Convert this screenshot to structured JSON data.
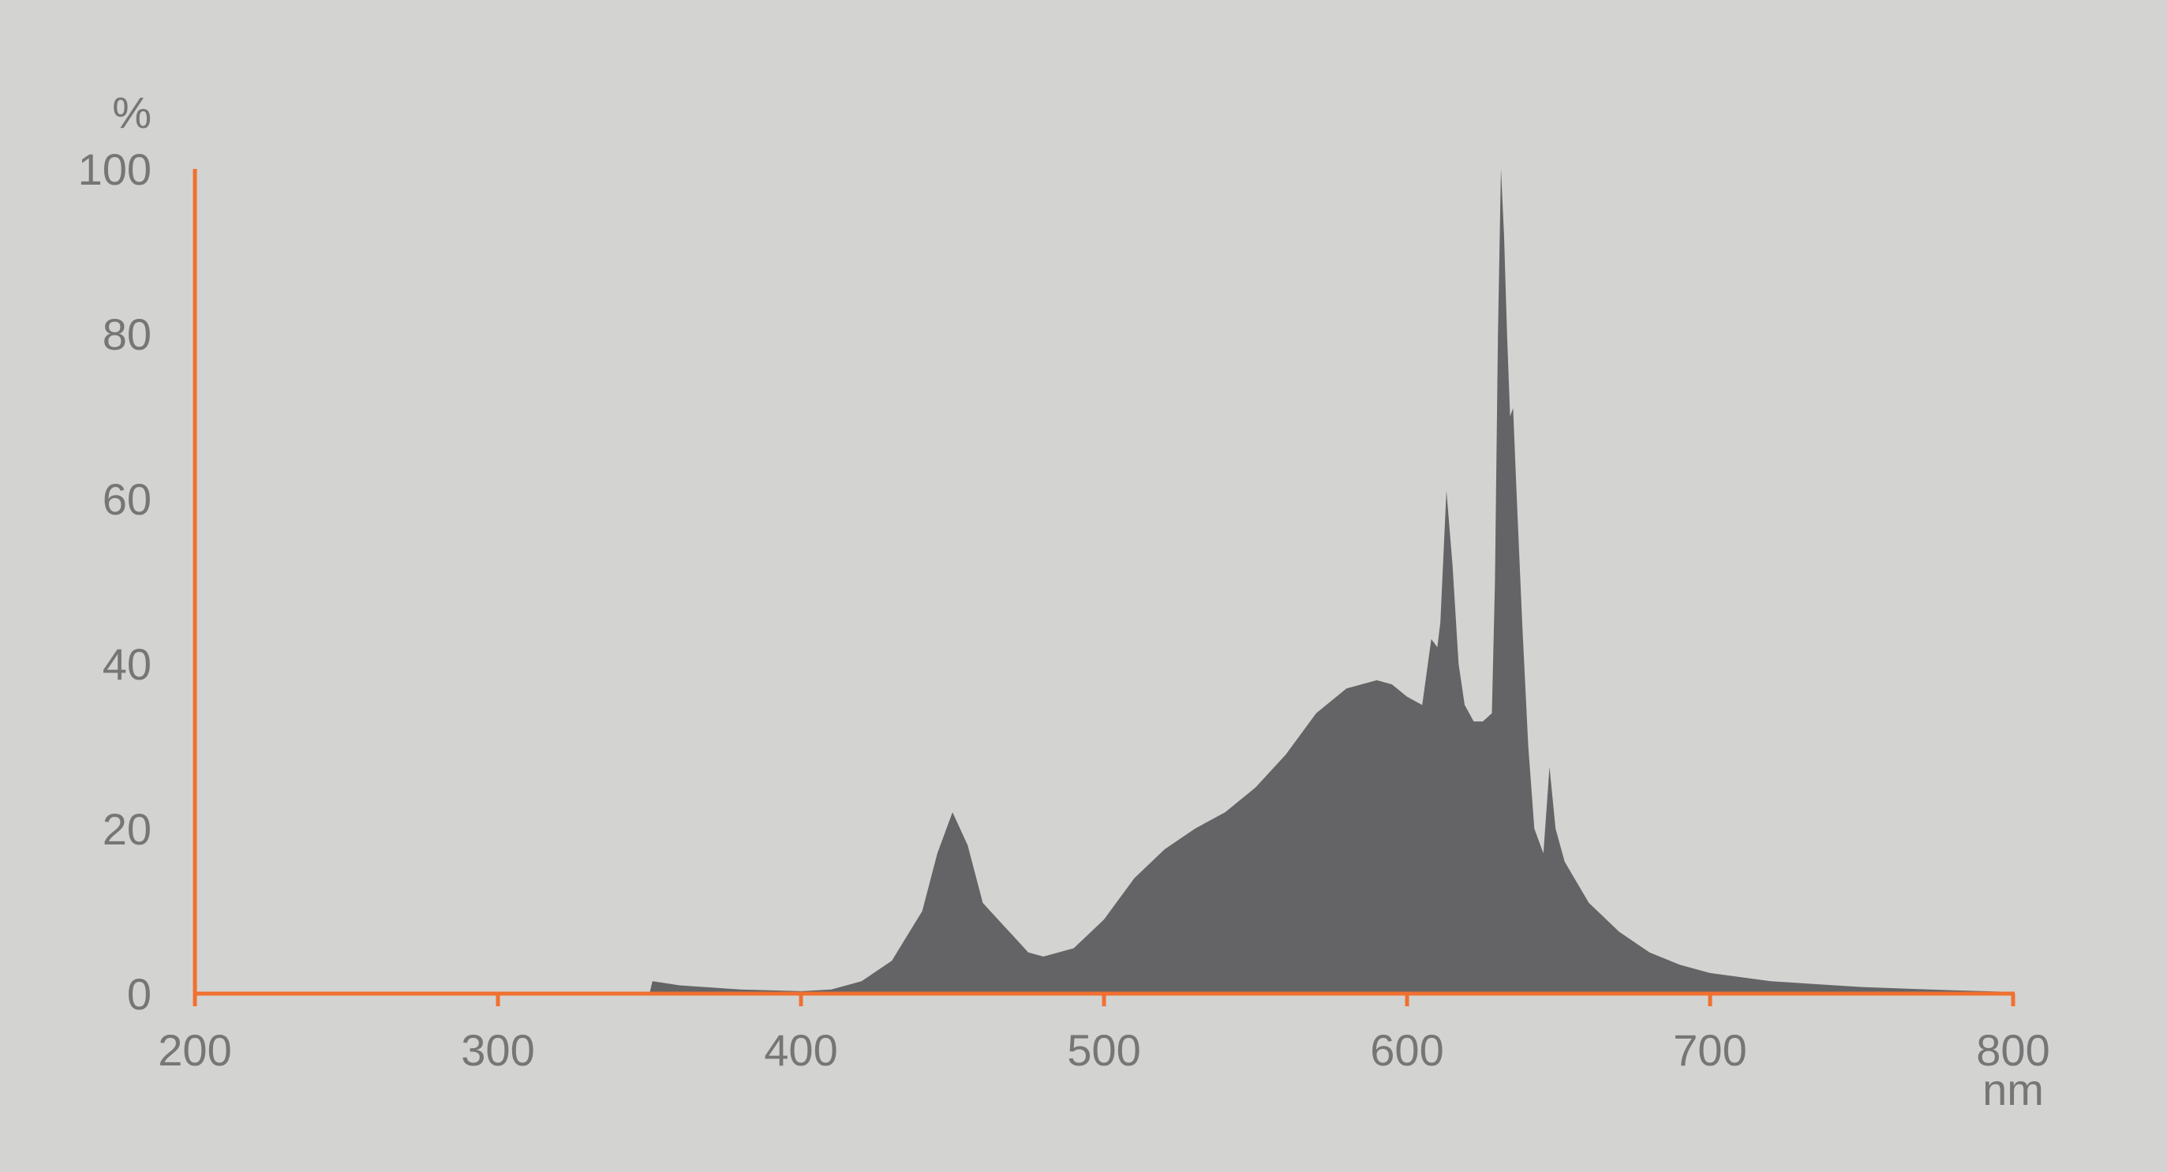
{
  "chart_data": {
    "type": "area",
    "title": "",
    "xlabel": "nm",
    "ylabel": "%",
    "xlim": [
      200,
      800
    ],
    "ylim": [
      0,
      100
    ],
    "xticks": [
      200,
      300,
      400,
      500,
      600,
      700,
      800
    ],
    "yticks": [
      0,
      20,
      40,
      60,
      80,
      100
    ],
    "grid": false,
    "colors": {
      "background": "#d3d3d1",
      "fill": "#646466",
      "axis": "#f07030",
      "text": "#767676"
    },
    "series": [
      {
        "x": [
          350,
          351,
          360,
          380,
          400,
          410,
          420,
          430,
          440,
          445,
          450,
          455,
          460,
          465,
          470,
          475,
          480,
          490,
          500,
          510,
          520,
          530,
          540,
          550,
          560,
          570,
          580,
          590,
          595,
          600,
          605,
          608,
          610,
          611,
          613,
          615,
          617,
          619,
          622,
          625,
          628,
          629,
          630,
          631,
          632,
          633,
          634,
          635,
          636,
          638,
          640,
          642,
          645,
          647,
          649,
          652,
          660,
          670,
          680,
          690,
          700,
          720,
          750,
          780,
          800
        ],
        "y": [
          0,
          1.5,
          1,
          0.5,
          0.3,
          0.5,
          1.5,
          4,
          10,
          17,
          22,
          18,
          11,
          9,
          7,
          5,
          4.5,
          5.5,
          9,
          14,
          17.5,
          20,
          22,
          25,
          29,
          34,
          37,
          38,
          37.5,
          36,
          35,
          43,
          42,
          45,
          61,
          52,
          40,
          35,
          33,
          33,
          34,
          50,
          80,
          100,
          92,
          80,
          70,
          71,
          62,
          45,
          30,
          20,
          17,
          27.5,
          20,
          16,
          11,
          7.5,
          5,
          3.5,
          2.5,
          1.5,
          0.8,
          0.4,
          0.2
        ]
      }
    ]
  }
}
